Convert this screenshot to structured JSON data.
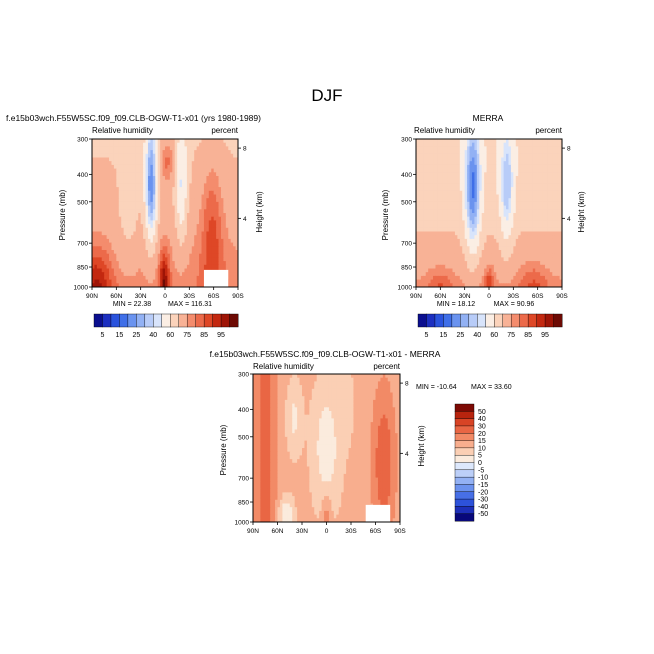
{
  "figure_title": "DJF",
  "chart_data": [
    {
      "type": "heatmap",
      "id": "model",
      "title": "f.e15b03wch.F55W5SC.f09_f09.CLB-OGW-T1-x01 (yrs 1980-1989)",
      "left_label": "Relative humidity",
      "right_label": "percent",
      "ylabel": "Pressure (mb)",
      "y2label": "Height (km)",
      "xticks": [
        "90N",
        "60N",
        "30N",
        "0",
        "30S",
        "60S",
        "90S"
      ],
      "yticks": [
        "300",
        "400",
        "500",
        "700",
        "850",
        "1000"
      ],
      "y2ticks": [
        "8",
        "4"
      ],
      "min_label": "MIN = 22.38",
      "max_label": "MAX = 116.31",
      "levels": [
        5,
        10,
        15,
        20,
        25,
        30,
        35,
        40,
        50,
        60,
        70,
        75,
        80,
        85,
        90,
        95
      ],
      "colorbar_labels": [
        "5",
        "15",
        "25",
        "40",
        "60",
        "75",
        "85",
        "95"
      ]
    },
    {
      "type": "heatmap",
      "id": "merra",
      "title": "MERRA",
      "left_label": "Relative humidity",
      "right_label": "percent",
      "ylabel": "Pressure (mb)",
      "y2label": "Height (km)",
      "xticks": [
        "90N",
        "60N",
        "30N",
        "0",
        "30S",
        "60S",
        "90S"
      ],
      "yticks": [
        "300",
        "400",
        "500",
        "700",
        "850",
        "1000"
      ],
      "y2ticks": [
        "8",
        "4"
      ],
      "min_label": "MIN = 18.12",
      "max_label": "MAX = 90.96",
      "levels": [
        5,
        10,
        15,
        20,
        25,
        30,
        35,
        40,
        50,
        60,
        70,
        75,
        80,
        85,
        90,
        95
      ],
      "colorbar_labels": [
        "5",
        "15",
        "25",
        "40",
        "60",
        "75",
        "85",
        "95"
      ]
    },
    {
      "type": "heatmap",
      "id": "diff",
      "title": "f.e15b03wch.F55W5SC.f09_f09.CLB-OGW-T1-x01 - MERRA",
      "left_label": "Relative humidity",
      "right_label": "percent",
      "ylabel": "Pressure (mb)",
      "y2label": "Height (km)",
      "xticks": [
        "90N",
        "60N",
        "30N",
        "0",
        "30S",
        "60S",
        "90S"
      ],
      "yticks": [
        "300",
        "400",
        "500",
        "700",
        "850",
        "1000"
      ],
      "y2ticks": [
        "8",
        "4"
      ],
      "min_label": "MIN = -10.64",
      "max_label": "MAX = 33.60",
      "levels": [
        -50,
        -40,
        -30,
        -20,
        -15,
        -10,
        -5,
        0,
        5,
        10,
        15,
        20,
        30,
        40,
        50
      ],
      "colorbar_labels": [
        "50",
        "40",
        "30",
        "20",
        "15",
        "10",
        "5",
        "0",
        "-5",
        "-10",
        "-15",
        "-20",
        "-30",
        "-40",
        "-50"
      ]
    }
  ],
  "colors": {
    "seq": [
      "#0b0f8f",
      "#1c2fc0",
      "#2a53dd",
      "#3f6fe8",
      "#6a93ef",
      "#92b1f4",
      "#b8ccf8",
      "#d8e4fb",
      "#fbeee4",
      "#fbd3bb",
      "#f8b296",
      "#f48c6d",
      "#ec6a4a",
      "#de4726",
      "#c32810",
      "#9e1406",
      "#6d0a04"
    ],
    "div": [
      "#08087a",
      "#1d2fb8",
      "#2d52da",
      "#476fe6",
      "#6c92ee",
      "#93b1f4",
      "#bccff8",
      "#dde8fc",
      "#fbebdd",
      "#fbcfb4",
      "#f8ae8e",
      "#f28a66",
      "#e96644",
      "#d84425",
      "#b8240e",
      "#7d0a04"
    ]
  }
}
